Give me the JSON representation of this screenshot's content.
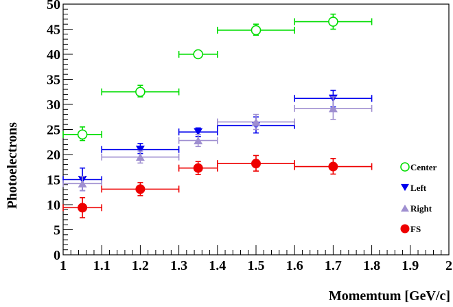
{
  "chart_data": {
    "type": "scatter",
    "title": "",
    "xlabel": "Momemtum [GeV/c]",
    "ylabel": "Photoelectrons",
    "xlim": [
      1,
      2
    ],
    "ylim": [
      0,
      50
    ],
    "x_ticks": [
      "1",
      "1.1",
      "1.2",
      "1.3",
      "1.4",
      "1.5",
      "1.6",
      "1.7",
      "1.8",
      "1.9",
      "2"
    ],
    "y_ticks": [
      "0",
      "5",
      "10",
      "15",
      "20",
      "25",
      "30",
      "35",
      "40",
      "45",
      "50"
    ],
    "grid": false,
    "legend_position": "right",
    "series": [
      {
        "name": "Center",
        "marker": "circle-open",
        "color": "#00dd00",
        "points": [
          {
            "x": 1.05,
            "y": 24.0,
            "xlo": 1.0,
            "xhi": 1.1,
            "ylo": 22.8,
            "yhi": 25.5
          },
          {
            "x": 1.2,
            "y": 32.5,
            "xlo": 1.1,
            "xhi": 1.3,
            "ylo": 31.5,
            "yhi": 33.8
          },
          {
            "x": 1.35,
            "y": 40.0,
            "xlo": 1.3,
            "xhi": 1.4,
            "ylo": 39.6,
            "yhi": 40.4
          },
          {
            "x": 1.5,
            "y": 44.8,
            "xlo": 1.4,
            "xhi": 1.6,
            "ylo": 43.8,
            "yhi": 46.0
          },
          {
            "x": 1.7,
            "y": 46.5,
            "xlo": 1.6,
            "xhi": 1.8,
            "ylo": 45.0,
            "yhi": 48.0
          }
        ]
      },
      {
        "name": "Left",
        "marker": "triangle-down",
        "color": "#0000ee",
        "points": [
          {
            "x": 1.05,
            "y": 15.0,
            "xlo": 1.0,
            "xhi": 1.1,
            "ylo": 12.8,
            "yhi": 17.3
          },
          {
            "x": 1.2,
            "y": 21.0,
            "xlo": 1.1,
            "xhi": 1.3,
            "ylo": 20.2,
            "yhi": 22.2
          },
          {
            "x": 1.35,
            "y": 24.5,
            "xlo": 1.3,
            "xhi": 1.4,
            "ylo": 23.6,
            "yhi": 25.3
          },
          {
            "x": 1.5,
            "y": 25.8,
            "xlo": 1.4,
            "xhi": 1.6,
            "ylo": 24.3,
            "yhi": 27.5
          },
          {
            "x": 1.7,
            "y": 31.2,
            "xlo": 1.6,
            "xhi": 1.8,
            "ylo": 29.5,
            "yhi": 32.8
          }
        ]
      },
      {
        "name": "Right",
        "marker": "triangle-up",
        "color": "#9f8fd0",
        "points": [
          {
            "x": 1.05,
            "y": 14.2,
            "xlo": 1.0,
            "xhi": 1.1,
            "ylo": 12.8,
            "yhi": 15.6
          },
          {
            "x": 1.2,
            "y": 19.5,
            "xlo": 1.1,
            "xhi": 1.3,
            "ylo": 18.3,
            "yhi": 20.7
          },
          {
            "x": 1.35,
            "y": 22.8,
            "xlo": 1.3,
            "xhi": 1.4,
            "ylo": 21.6,
            "yhi": 24.0
          },
          {
            "x": 1.5,
            "y": 26.5,
            "xlo": 1.4,
            "xhi": 1.6,
            "ylo": 25.0,
            "yhi": 28.0
          },
          {
            "x": 1.7,
            "y": 29.2,
            "xlo": 1.6,
            "xhi": 1.8,
            "ylo": 27.0,
            "yhi": 31.5
          }
        ]
      },
      {
        "name": "FS",
        "marker": "circle-filled",
        "color": "#ee0000",
        "points": [
          {
            "x": 1.05,
            "y": 9.4,
            "xlo": 1.0,
            "xhi": 1.1,
            "ylo": 7.4,
            "yhi": 11.4
          },
          {
            "x": 1.2,
            "y": 13.1,
            "xlo": 1.1,
            "xhi": 1.3,
            "ylo": 11.8,
            "yhi": 14.4
          },
          {
            "x": 1.35,
            "y": 17.3,
            "xlo": 1.3,
            "xhi": 1.4,
            "ylo": 16.0,
            "yhi": 18.6
          },
          {
            "x": 1.5,
            "y": 18.2,
            "xlo": 1.4,
            "xhi": 1.6,
            "ylo": 16.7,
            "yhi": 19.8
          },
          {
            "x": 1.7,
            "y": 17.6,
            "xlo": 1.6,
            "xhi": 1.8,
            "ylo": 16.1,
            "yhi": 19.2
          }
        ]
      }
    ]
  }
}
